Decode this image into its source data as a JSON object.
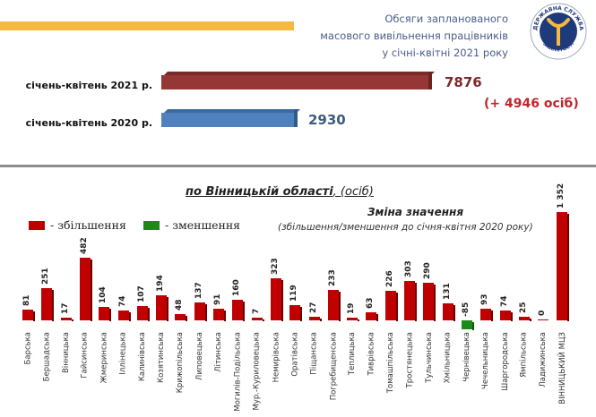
{
  "header": {
    "title_lines": [
      "Обсяги запланованого",
      "масового вивільнення працівників",
      "у січні-квітні 2021 року"
    ],
    "logo": {
      "top_text": "ДЕРЖАВНА СЛУЖБА",
      "bottom_text": "ЗАЙНЯТОСТІ",
      "icon": "employment-service-logo-icon"
    },
    "accent_color": "#f5b942"
  },
  "summary": {
    "bars": [
      {
        "label": "січень-квітень 2021 р.",
        "value": "7876",
        "color": "#953735"
      },
      {
        "label": "січень-квітень 2020 р.",
        "value": "2930",
        "color": "#4f81bd"
      }
    ],
    "difference": "(+ 4946 осіб)",
    "difference_color": "#c0262c"
  },
  "region": {
    "subtitle_main": "по Вінницькій області",
    "subtitle_unit": ", (осіб)"
  },
  "legend": {
    "increase": {
      "label": "- збільшення",
      "color": "#c00000"
    },
    "decrease": {
      "label": "- зменшення",
      "color": "#1a8a1a"
    }
  },
  "change": {
    "title": "Зміна значення",
    "subtitle": "(збільшення/зменшення до січня-квітня 2020 року)"
  },
  "chart_data": [
    {
      "type": "bar",
      "orientation": "horizontal",
      "title": "Обсяги запланованого масового вивільнення працівників у січні-квітні 2021 року",
      "categories": [
        "січень-квітень 2021 р.",
        "січень-квітень 2020 р."
      ],
      "values": [
        7876,
        2930
      ],
      "annotation": "(+ 4946 осіб)"
    },
    {
      "type": "bar",
      "orientation": "vertical",
      "title": "по Вінницькій області, (осіб) — Зміна значення (збільшення/зменшення до січня-квітня 2020 року)",
      "legend": [
        "- збільшення",
        "- зменшення"
      ],
      "categories": [
        "Барська",
        "Бершадська",
        "Вінницька",
        "Гайсинська",
        "Жмеринська",
        "Іллінецька",
        "Калинівська",
        "Козятинська",
        "Крижопільська",
        "Липовецька",
        "Літинська",
        "Могилів-Подільська",
        "Мур.-Куриловецька",
        "Немирівська",
        "Оратівська",
        "Піщанська",
        "Погребищенська",
        "Теплицька",
        "Тиврівська",
        "Томашпільська",
        "Тростянецька",
        "Тульчинська",
        "Хмільницька",
        "Чернівецька",
        "Чечельницька",
        "Шаргородська",
        "Ямпільська",
        "Ладижинська",
        "ВІННИЦЬКИЙ МЦЗ"
      ],
      "values": [
        81,
        251,
        17,
        482,
        104,
        74,
        107,
        194,
        48,
        137,
        91,
        160,
        7,
        323,
        119,
        27,
        233,
        19,
        63,
        226,
        303,
        290,
        131,
        -85,
        93,
        74,
        25,
        0,
        1352
      ],
      "value_labels": [
        "81",
        "251",
        "17",
        "482",
        "104",
        "74",
        "107",
        "194",
        "48",
        "137",
        "91",
        "160",
        "7",
        "323",
        "119",
        "27",
        "233",
        "19",
        "63",
        "226",
        "303",
        "290",
        "131",
        "-85",
        "93",
        "74",
        "25",
        "0",
        "1 352"
      ],
      "xlabel": "",
      "ylabel": "",
      "grid": false
    }
  ]
}
